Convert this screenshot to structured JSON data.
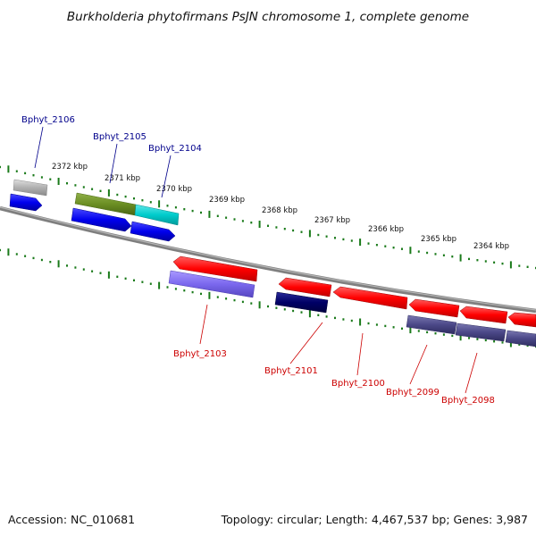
{
  "header": {
    "title": "Burkholderia phytofirmans PsJN chromosome 1, complete genome"
  },
  "footer": {
    "accession": "Accession: NC_010681",
    "summary": "Topology: circular; Length: 4,467,537 bp; Genes: 3,987"
  },
  "map": {
    "tick_labels": [
      "2372 kbp",
      "2371 kbp",
      "2370 kbp",
      "2369 kbp",
      "2368 kbp",
      "2367 kbp",
      "2366 kbp",
      "2365 kbp",
      "2364 kbp"
    ],
    "upper_labels": [
      "Bphyt_2106",
      "Bphyt_2105",
      "Bphyt_2104"
    ],
    "lower_labels": [
      "Bphyt_2103",
      "Bphyt_2101",
      "Bphyt_2100",
      "Bphyt_2099",
      "Bphyt_2098"
    ],
    "colors": {
      "forward_label": "#00008b",
      "reverse_label": "#cc0000",
      "backbone": "#7f7f7f",
      "ticks": "#1a7a1a",
      "red_gene": "#ff0000",
      "blue_gene": "#0000ee",
      "cyan_gene": "#00cccc",
      "olive_gene": "#6b8e23",
      "grey_gene": "#b0b0b0",
      "navy_gene": "#000066",
      "slate_gene": "#4b4888",
      "lavender_gene": "#7b68ee"
    }
  }
}
